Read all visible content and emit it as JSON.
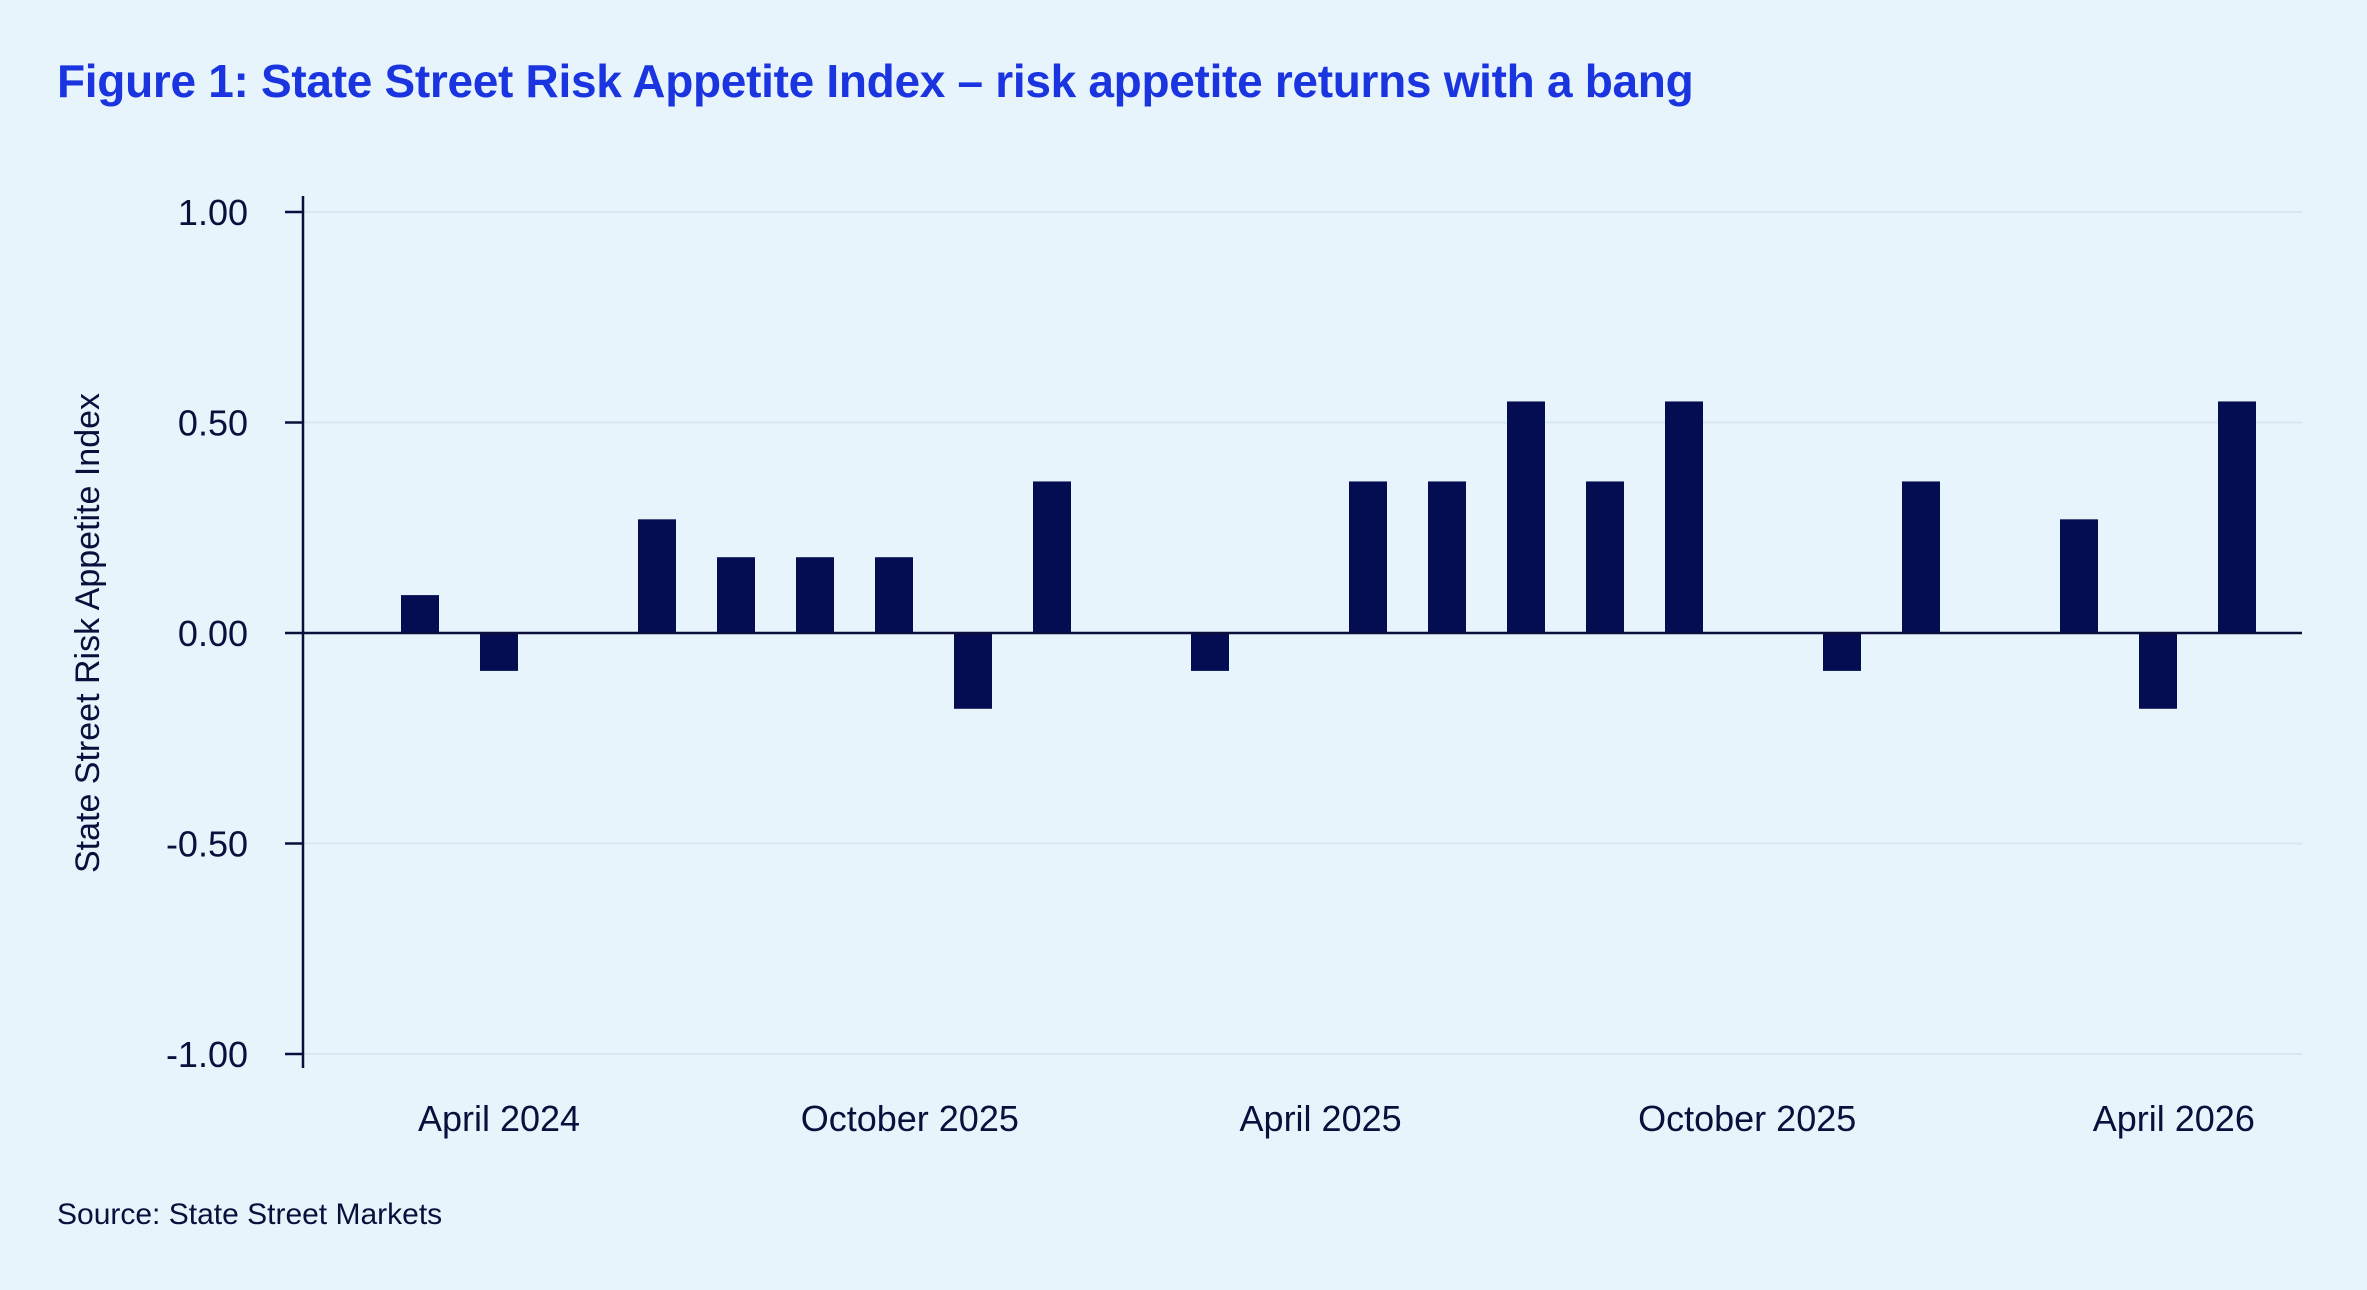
{
  "title": "Figure 1: State Street Risk Appetite Index – risk appetite returns with a bang",
  "source": "Source: State Street Markets",
  "colors": {
    "background": "#e8f4fc",
    "title": "#1a35e0",
    "bar": "#040c52",
    "axis": "#0a0f3c",
    "grid": "#d6e6f2"
  },
  "chart_data": {
    "type": "bar",
    "ylabel": "State Street Risk Appetite Index",
    "ylim": [
      -1.0,
      1.0
    ],
    "yticks": [
      "1.00",
      "0.50",
      "0.00",
      "-0.50",
      "-1.00"
    ],
    "ytick_values": [
      1.0,
      0.5,
      0.0,
      -0.5,
      -1.0
    ],
    "grid": true,
    "xtick_labels": [
      "April 2024",
      "October 2025",
      "April 2025",
      "October 2025",
      "April 2026"
    ],
    "xtick_positions": [
      2,
      7.2,
      12.4,
      17.8,
      23.2
    ],
    "slot_count": 25,
    "values": [
      null,
      0.09,
      -0.09,
      null,
      0.27,
      0.18,
      0.18,
      0.18,
      -0.18,
      0.36,
      null,
      -0.09,
      null,
      0.36,
      0.36,
      0.55,
      0.36,
      0.55,
      null,
      -0.09,
      0.36,
      null,
      0.27,
      -0.18,
      0.55
    ]
  }
}
